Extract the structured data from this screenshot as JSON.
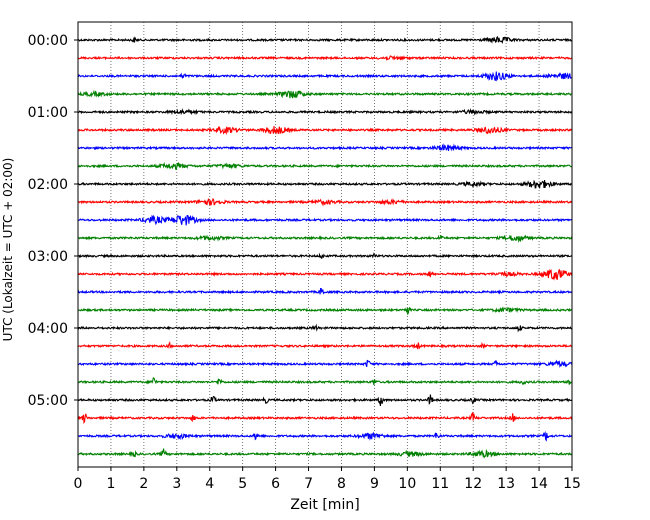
{
  "chart_data": {
    "type": "line",
    "title": "",
    "xlabel": "Zeit  [min]",
    "ylabel": "UTC (Lokalzeit = UTC + 02:00)",
    "xlim": [
      0,
      15
    ],
    "x_ticks": [
      "0",
      "1",
      "2",
      "3",
      "4",
      "5",
      "6",
      "7",
      "8",
      "9",
      "10",
      "11",
      "12",
      "13",
      "14",
      "15"
    ],
    "y_ticks": [
      "00:00",
      "01:00",
      "02:00",
      "03:00",
      "04:00",
      "05:00"
    ],
    "grid_x": true,
    "trace_interval_min": 15,
    "colors_cycle": [
      "#000000",
      "#ff0000",
      "#0000ff",
      "#008000"
    ],
    "series": [
      {
        "start": "00:00",
        "color": "#000000",
        "events": [
          [
            1.7,
            2.0,
            "spike"
          ],
          [
            12.8,
            2.5,
            "burst"
          ]
        ]
      },
      {
        "start": "00:15",
        "color": "#ff0000",
        "events": [
          [
            9.6,
            1.2,
            "burst"
          ]
        ]
      },
      {
        "start": "00:30",
        "color": "#0000ff",
        "events": [
          [
            3.2,
            2.5,
            "spike"
          ],
          [
            12.7,
            4.0,
            "burst"
          ],
          [
            14.7,
            2.5,
            "burst"
          ]
        ]
      },
      {
        "start": "00:45",
        "color": "#008000",
        "events": [
          [
            0.5,
            1.5,
            "burst"
          ],
          [
            6.5,
            3.5,
            "burst"
          ]
        ]
      },
      {
        "start": "01:00",
        "color": "#000000",
        "events": [
          [
            3.2,
            1.5,
            "burst"
          ],
          [
            12.0,
            1.5,
            "burst"
          ]
        ]
      },
      {
        "start": "01:15",
        "color": "#ff0000",
        "events": [
          [
            4.5,
            2.5,
            "burst"
          ],
          [
            6.0,
            3.5,
            "burst"
          ],
          [
            12.5,
            3.0,
            "burst"
          ]
        ]
      },
      {
        "start": "01:30",
        "color": "#0000ff",
        "events": [
          [
            11.2,
            2.5,
            "burst"
          ]
        ]
      },
      {
        "start": "01:45",
        "color": "#008000",
        "events": [
          [
            2.9,
            2.5,
            "burst"
          ],
          [
            4.6,
            1.5,
            "burst"
          ]
        ]
      },
      {
        "start": "02:00",
        "color": "#000000",
        "events": [
          [
            12.0,
            1.5,
            "burst"
          ],
          [
            14.0,
            4.0,
            "burst"
          ]
        ]
      },
      {
        "start": "02:15",
        "color": "#ff0000",
        "events": [
          [
            4.0,
            2.5,
            "burst"
          ],
          [
            7.5,
            1.5,
            "burst"
          ],
          [
            9.5,
            1.5,
            "burst"
          ]
        ]
      },
      {
        "start": "02:30",
        "color": "#0000ff",
        "events": [
          [
            2.3,
            3.0,
            "burst"
          ],
          [
            3.2,
            5.0,
            "burst"
          ]
        ]
      },
      {
        "start": "02:45",
        "color": "#008000",
        "events": [
          [
            4.0,
            1.5,
            "burst"
          ],
          [
            11.0,
            2.5,
            "spike"
          ],
          [
            13.3,
            2.5,
            "burst"
          ]
        ]
      },
      {
        "start": "03:00",
        "color": "#000000",
        "events": [
          [
            7.4,
            2.0,
            "spike"
          ],
          [
            9.0,
            1.5,
            "spike"
          ]
        ]
      },
      {
        "start": "03:15",
        "color": "#ff0000",
        "events": [
          [
            10.7,
            3.0,
            "spike"
          ],
          [
            13.0,
            1.5,
            "burst"
          ],
          [
            14.5,
            5.0,
            "burst"
          ]
        ]
      },
      {
        "start": "03:30",
        "color": "#0000ff",
        "events": [
          [
            7.4,
            4.5,
            "spike"
          ]
        ]
      },
      {
        "start": "03:45",
        "color": "#008000",
        "events": [
          [
            10.0,
            4.5,
            "spike"
          ],
          [
            13.0,
            1.5,
            "burst"
          ]
        ]
      },
      {
        "start": "04:00",
        "color": "#000000",
        "events": [
          [
            7.2,
            3.0,
            "spike"
          ],
          [
            13.4,
            3.0,
            "spike"
          ]
        ]
      },
      {
        "start": "04:15",
        "color": "#ff0000",
        "events": [
          [
            2.8,
            2.5,
            "spike"
          ],
          [
            10.3,
            4.0,
            "spike"
          ],
          [
            12.3,
            2.0,
            "spike"
          ]
        ]
      },
      {
        "start": "04:30",
        "color": "#0000ff",
        "events": [
          [
            8.8,
            4.0,
            "spike"
          ],
          [
            12.7,
            3.0,
            "spike"
          ],
          [
            14.6,
            2.0,
            "burst"
          ]
        ]
      },
      {
        "start": "04:45",
        "color": "#008000",
        "events": [
          [
            2.3,
            5.0,
            "spike"
          ],
          [
            4.3,
            4.0,
            "spike"
          ],
          [
            9.0,
            3.0,
            "spike"
          ],
          [
            13.5,
            3.0,
            "spike"
          ],
          [
            14.9,
            3.0,
            "spike"
          ]
        ]
      },
      {
        "start": "05:00",
        "color": "#000000",
        "events": [
          [
            4.1,
            4.0,
            "spike"
          ],
          [
            5.7,
            3.0,
            "spike"
          ],
          [
            9.2,
            5.5,
            "spike"
          ],
          [
            10.7,
            5.0,
            "spike"
          ],
          [
            12.0,
            3.0,
            "spike"
          ]
        ]
      },
      {
        "start": "05:15",
        "color": "#ff0000",
        "events": [
          [
            0.2,
            5.0,
            "spike"
          ],
          [
            3.5,
            3.0,
            "spike"
          ],
          [
            12.0,
            5.5,
            "spike"
          ],
          [
            13.2,
            4.0,
            "spike"
          ]
        ]
      },
      {
        "start": "05:30",
        "color": "#0000ff",
        "events": [
          [
            3.0,
            2.0,
            "burst"
          ],
          [
            5.4,
            4.5,
            "spike"
          ],
          [
            8.9,
            2.5,
            "burst"
          ],
          [
            10.9,
            3.5,
            "spike"
          ],
          [
            14.2,
            4.5,
            "spike"
          ]
        ]
      },
      {
        "start": "05:45",
        "color": "#008000",
        "events": [
          [
            1.7,
            3.0,
            "spike"
          ],
          [
            2.6,
            5.0,
            "spike"
          ],
          [
            10.1,
            2.0,
            "burst"
          ],
          [
            12.3,
            2.5,
            "burst"
          ]
        ]
      }
    ]
  }
}
